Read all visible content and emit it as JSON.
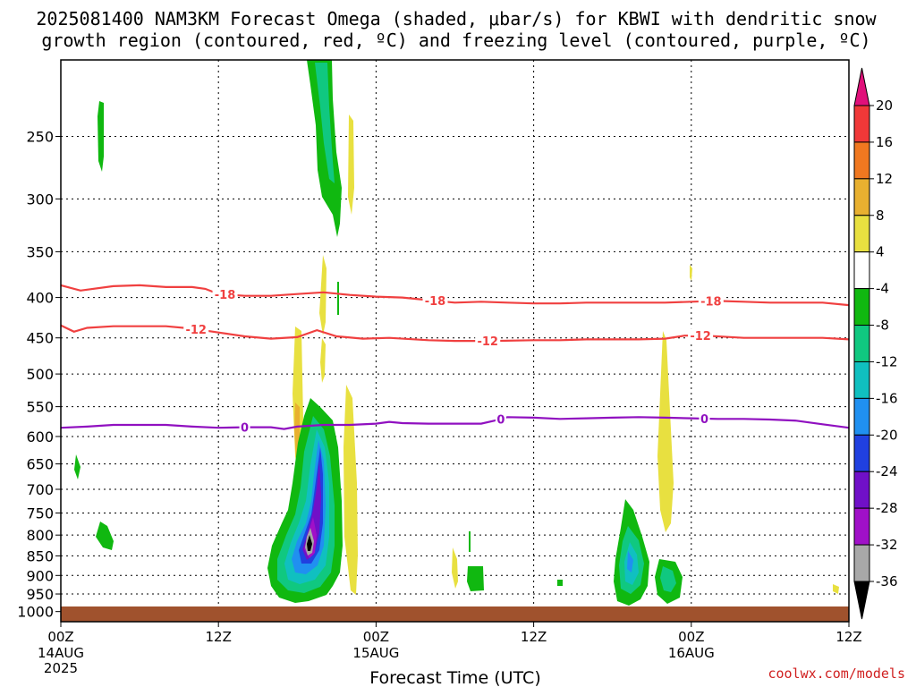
{
  "title": {
    "line1": "2025081400 NAM3KM Forecast Omega (shaded, μbar/s) for KBWI with dendritic snow",
    "line2": "growth region (contoured, red, ºC) and freezing level (contoured, purple, ºC)"
  },
  "credit": "coolwx.com/models",
  "chart_data": {
    "type": "heatmap",
    "xlabel": "Forecast Time (UTC)",
    "ylabel": "",
    "x_range_hours": [
      0,
      60
    ],
    "y_range_hpa": [
      1030,
      200
    ],
    "y_scale": "pressure",
    "grid": true,
    "x_ticks": [
      {
        "hour": 0,
        "label": "00Z",
        "sub1": "14AUG",
        "sub2": "2025"
      },
      {
        "hour": 12,
        "label": "12Z",
        "sub1": "",
        "sub2": ""
      },
      {
        "hour": 24,
        "label": "00Z",
        "sub1": "15AUG",
        "sub2": ""
      },
      {
        "hour": 36,
        "label": "12Z",
        "sub1": "",
        "sub2": ""
      },
      {
        "hour": 48,
        "label": "00Z",
        "sub1": "16AUG",
        "sub2": ""
      },
      {
        "hour": 60,
        "label": "12Z",
        "sub1": "",
        "sub2": ""
      }
    ],
    "y_ticks": [
      250,
      300,
      350,
      400,
      450,
      500,
      550,
      600,
      650,
      700,
      750,
      800,
      850,
      900,
      950,
      1000
    ],
    "colorbar": {
      "labels": [
        "20",
        "16",
        "12",
        "8",
        "4",
        "-4",
        "-8",
        "-12",
        "-16",
        "-20",
        "-24",
        "-28",
        "-32",
        "-36"
      ],
      "colors": [
        "#e0107a",
        "#f03838",
        "#f07820",
        "#e8b030",
        "#e8e040",
        "#ffffff",
        "#10b810",
        "#10c880",
        "#10c0c0",
        "#2090f0",
        "#2040e0",
        "#7010c8",
        "#a010c8",
        "#a8a8a8",
        "#000000"
      ]
    },
    "contours": [
      {
        "name": "-18",
        "color": "#f04040",
        "label": "-18",
        "points": [
          [
            0,
            386
          ],
          [
            1.5,
            392
          ],
          [
            4,
            387
          ],
          [
            6,
            386
          ],
          [
            8,
            388
          ],
          [
            10,
            388
          ],
          [
            11,
            390
          ],
          [
            12,
            396
          ],
          [
            14,
            398
          ],
          [
            16,
            398
          ],
          [
            18,
            396
          ],
          [
            20,
            394
          ],
          [
            22,
            397
          ],
          [
            24,
            399
          ],
          [
            26,
            400
          ],
          [
            28,
            403
          ],
          [
            30,
            406
          ],
          [
            32,
            405
          ],
          [
            34,
            406
          ],
          [
            36,
            407
          ],
          [
            38,
            407
          ],
          [
            40,
            406
          ],
          [
            42,
            406
          ],
          [
            44,
            406
          ],
          [
            46,
            406
          ],
          [
            48,
            405
          ],
          [
            50,
            404
          ],
          [
            52,
            405
          ],
          [
            54,
            406
          ],
          [
            56,
            406
          ],
          [
            58,
            406
          ],
          [
            60,
            409
          ]
        ],
        "label_hours": [
          12.5,
          28.5,
          49.5
        ]
      },
      {
        "name": "-12",
        "color": "#f04040",
        "label": "-12",
        "points": [
          [
            0,
            434
          ],
          [
            1,
            442
          ],
          [
            2,
            437
          ],
          [
            4,
            435
          ],
          [
            6,
            435
          ],
          [
            8,
            435
          ],
          [
            10,
            438
          ],
          [
            12,
            443
          ],
          [
            14,
            448
          ],
          [
            16,
            451
          ],
          [
            18,
            449
          ],
          [
            19.5,
            440
          ],
          [
            21,
            448
          ],
          [
            23,
            451
          ],
          [
            25,
            450
          ],
          [
            28,
            453
          ],
          [
            30,
            454
          ],
          [
            33,
            454
          ],
          [
            36,
            453
          ],
          [
            38,
            453
          ],
          [
            40,
            452
          ],
          [
            42,
            452
          ],
          [
            44,
            452
          ],
          [
            46,
            451
          ],
          [
            47.5,
            447
          ],
          [
            49,
            447
          ],
          [
            52,
            450
          ],
          [
            54,
            450
          ],
          [
            56,
            450
          ],
          [
            58,
            450
          ],
          [
            60,
            452
          ]
        ],
        "label_hours": [
          10.3,
          32.5,
          48.7
        ]
      },
      {
        "name": "0",
        "color": "#9010c0",
        "label": "0",
        "points": [
          [
            0,
            585
          ],
          [
            2,
            583
          ],
          [
            4,
            580
          ],
          [
            6,
            580
          ],
          [
            8,
            580
          ],
          [
            10,
            583
          ],
          [
            12,
            585
          ],
          [
            14,
            584
          ],
          [
            16,
            584
          ],
          [
            17,
            587
          ],
          [
            18,
            583
          ],
          [
            20,
            580
          ],
          [
            22,
            580
          ],
          [
            24,
            578
          ],
          [
            25,
            575
          ],
          [
            26,
            577
          ],
          [
            28,
            578
          ],
          [
            30,
            578
          ],
          [
            32,
            578
          ],
          [
            33,
            573
          ],
          [
            34,
            567
          ],
          [
            36,
            568
          ],
          [
            38,
            570
          ],
          [
            40,
            569
          ],
          [
            42,
            568
          ],
          [
            44,
            567
          ],
          [
            46,
            568
          ],
          [
            48,
            569
          ],
          [
            50,
            570
          ],
          [
            52,
            570
          ],
          [
            54,
            571
          ],
          [
            56,
            573
          ],
          [
            58,
            579
          ],
          [
            60,
            585
          ]
        ],
        "label_hours": [
          14.0,
          33.5,
          49.0
        ]
      }
    ]
  }
}
